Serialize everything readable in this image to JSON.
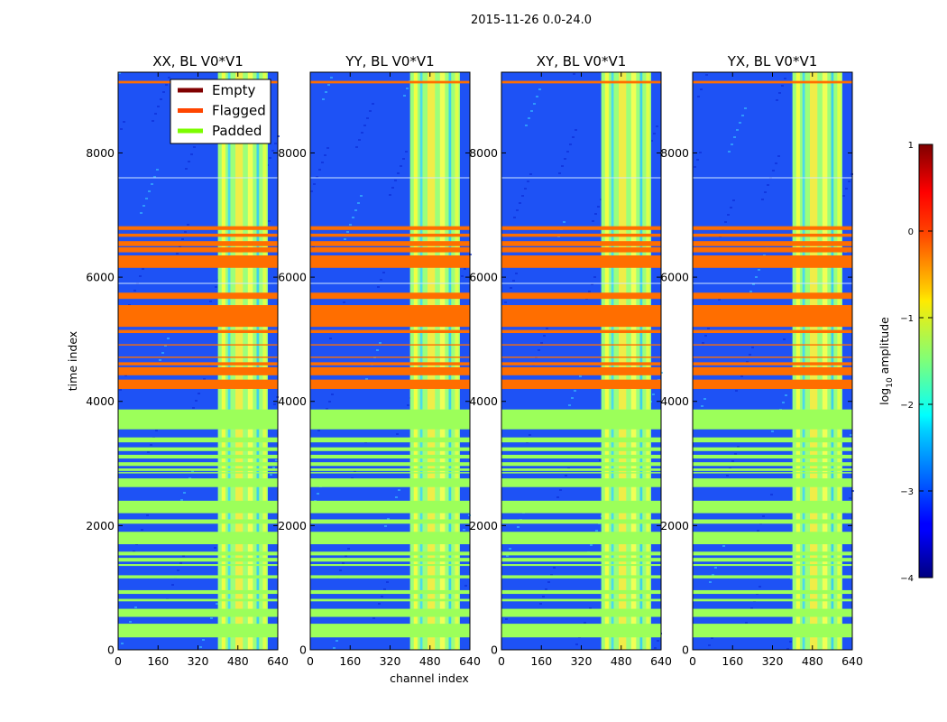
{
  "chart_data": {
    "type": "heatmap",
    "suptitle": "2015-11-26 0.0-24.0",
    "xlabel": "channel index",
    "ylabel": "time index",
    "xlim": [
      0,
      640
    ],
    "ylim": [
      0,
      9300
    ],
    "x_ticks": [
      0,
      160,
      320,
      480,
      640
    ],
    "y_ticks": [
      0,
      2000,
      4000,
      6000,
      8000
    ],
    "panels": [
      {
        "title": "XX, BL V0*V1"
      },
      {
        "title": "YY, BL V0*V1"
      },
      {
        "title": "XY, BL V0*V1"
      },
      {
        "title": "YX, BL V0*V1"
      }
    ],
    "legend": {
      "location": "upper-right of first panel",
      "entries": [
        {
          "label": "Empty",
          "color": "#800000"
        },
        {
          "label": "Flagged",
          "color": "#ff4500"
        },
        {
          "label": "Padded",
          "color": "#7cfc00"
        }
      ]
    },
    "colorbar": {
      "label": "log10 amplitude",
      "label_base": "log",
      "label_sub": "10",
      "label_rest": " amplitude",
      "range": [
        -4,
        1
      ],
      "ticks": [
        {
          "value": 1,
          "label": "1"
        },
        {
          "value": 0,
          "label": "0"
        },
        {
          "value": -1,
          "label": "−1"
        },
        {
          "value": -2,
          "label": "−2"
        },
        {
          "value": -3,
          "label": "−3"
        },
        {
          "value": -4,
          "label": "−4"
        }
      ]
    },
    "bright_channel_band": [
      400,
      600
    ],
    "flagged_rows": [
      [
        5100,
        5150
      ],
      [
        5200,
        5550
      ],
      [
        5650,
        5750
      ],
      [
        6150,
        6350
      ],
      [
        6400,
        6480
      ],
      [
        6500,
        6580
      ],
      [
        6650,
        6700
      ],
      [
        6760,
        6820
      ],
      [
        4200,
        4350
      ],
      [
        4420,
        4550
      ],
      [
        4580,
        4630
      ],
      [
        9120,
        9160
      ],
      [
        4700,
        4720
      ],
      [
        4900,
        4920
      ]
    ],
    "padded_rows": [
      [
        3550,
        3870
      ],
      [
        3340,
        3420
      ],
      [
        3200,
        3260
      ],
      [
        3080,
        3140
      ],
      [
        2960,
        3020
      ],
      [
        2880,
        2920
      ],
      [
        2840,
        2860
      ],
      [
        2620,
        2760
      ],
      [
        2200,
        2400
      ],
      [
        2030,
        2100
      ],
      [
        1700,
        1900
      ],
      [
        1520,
        1580
      ],
      [
        1420,
        1480
      ],
      [
        1350,
        1380
      ],
      [
        1150,
        1200
      ],
      [
        900,
        960
      ],
      [
        780,
        820
      ],
      [
        530,
        660
      ],
      [
        200,
        420
      ]
    ]
  },
  "colors": {
    "flagged": "#ff6e00",
    "padded": "#9cff5a",
    "background": "#1e52f5"
  }
}
